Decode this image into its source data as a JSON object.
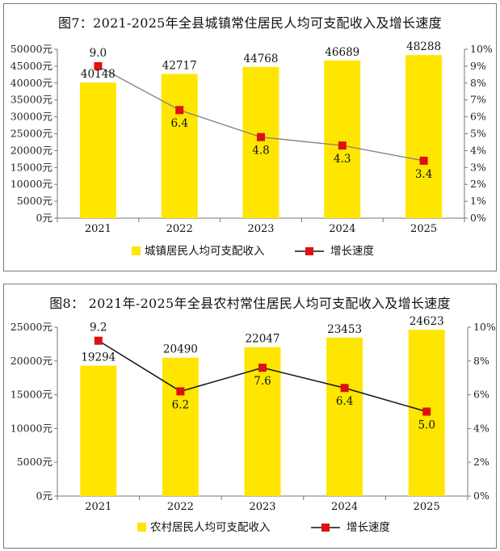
{
  "chart_data": [
    {
      "type": "bar",
      "title": "图7：2021-2025年全县城镇常住居民人均可支配收入及增长速度",
      "categories": [
        "2021",
        "2022",
        "2023",
        "2024",
        "2025"
      ],
      "series": [
        {
          "name": "城镇居民人均可支配收入",
          "type": "bar",
          "axis": "left",
          "values": [
            40148,
            42717,
            44768,
            46689,
            48288
          ]
        },
        {
          "name": "增长速度",
          "type": "line",
          "axis": "right",
          "values": [
            9.0,
            6.4,
            4.8,
            4.3,
            3.4
          ]
        }
      ],
      "bar_labels": [
        "40148",
        "42717",
        "44768",
        "46689",
        "48288"
      ],
      "line_labels": [
        "9.0",
        "6.4",
        "4.8",
        "4.3",
        "3.4"
      ],
      "ylim": [
        0,
        50000
      ],
      "y2lim": [
        0,
        10
      ],
      "y_ticks": [
        "0元",
        "5000元",
        "10000元",
        "15000元",
        "20000元",
        "25000元",
        "30000元",
        "35000元",
        "40000元",
        "45000元",
        "50000元"
      ],
      "y2_ticks": [
        "0%",
        "1%",
        "2%",
        "3%",
        "4%",
        "5%",
        "6%",
        "7%",
        "8%",
        "9%",
        "10%"
      ],
      "legend": "bottom",
      "grid": false,
      "colors": {
        "bar": "#ffe600",
        "line": "#808080",
        "marker": "#dd1111"
      }
    },
    {
      "type": "bar",
      "title": "图8： 2021年-2025年全县农村常住居民人均可支配收入及增长速度",
      "categories": [
        "2021",
        "2022",
        "2023",
        "2024",
        "2025"
      ],
      "series": [
        {
          "name": "农村居民人均可支配收入",
          "type": "bar",
          "axis": "left",
          "values": [
            19294,
            20490,
            22047,
            23453,
            24623
          ]
        },
        {
          "name": "增长速度",
          "type": "line",
          "axis": "right",
          "values": [
            9.2,
            6.2,
            7.6,
            6.4,
            5.0
          ]
        }
      ],
      "bar_labels": [
        "19294",
        "20490",
        "22047",
        "23453",
        "24623"
      ],
      "line_labels": [
        "9.2",
        "6.2",
        "7.6",
        "6.4",
        "5.0"
      ],
      "ylim": [
        0,
        25000
      ],
      "y2lim": [
        0,
        10
      ],
      "y_ticks": [
        "0元",
        "5000元",
        "10000元",
        "15000元",
        "20000元",
        "25000元"
      ],
      "y2_ticks": [
        "0%",
        "2%",
        "4%",
        "6%",
        "8%",
        "10%"
      ],
      "legend": "bottom",
      "grid": false,
      "colors": {
        "bar": "#ffe600",
        "line": "#111111",
        "marker": "#dd1111"
      }
    }
  ]
}
